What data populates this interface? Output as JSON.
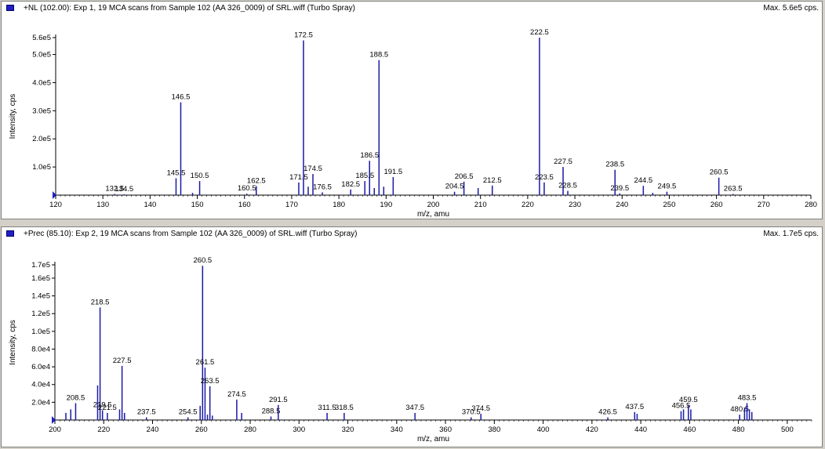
{
  "panels": [
    {
      "title": "+NL (102.00): Exp 1, 19 MCA scans from Sample 102 (AA 326_0009) of SRL.wiff (Turbo Spray)",
      "max_label": "Max. 5.6e5 cps."
    },
    {
      "title": "+Prec (85.10): Exp 2, 19 MCA scans from Sample 102 (AA 326_0009) of SRL.wiff (Turbo Spray)",
      "max_label": "Max. 1.7e5 cps."
    }
  ],
  "colors": {
    "peak": "#1a1aa8",
    "accent": "#2020c8",
    "background": "#ffffff",
    "frame": "#d4d0c8"
  },
  "chart_data": [
    {
      "type": "bar",
      "xlabel": "m/z, amu",
      "ylabel": "Intensity, cps",
      "xlim": [
        120,
        280
      ],
      "ylim": [
        0,
        560000
      ],
      "x_ticks": [
        120,
        130,
        140,
        150,
        160,
        170,
        180,
        190,
        200,
        210,
        220,
        230,
        240,
        250,
        260,
        270,
        280
      ],
      "y_ticks": [
        {
          "v": 100000,
          "l": "1.0e5"
        },
        {
          "v": 200000,
          "l": "2.0e5"
        },
        {
          "v": 300000,
          "l": "3.0e5"
        },
        {
          "v": 400000,
          "l": "4.0e5"
        },
        {
          "v": 500000,
          "l": "5.0e5"
        },
        {
          "v": 560000,
          "l": "5.6e5"
        }
      ],
      "peaks": [
        {
          "x": 132.5,
          "y": 4000,
          "label": "132.5"
        },
        {
          "x": 134.5,
          "y": 3000,
          "label": "134.5"
        },
        {
          "x": 145.5,
          "y": 60000,
          "label": "145.5"
        },
        {
          "x": 146.5,
          "y": 330000,
          "label": "146.5"
        },
        {
          "x": 149.0,
          "y": 8000
        },
        {
          "x": 150.5,
          "y": 50000,
          "label": "150.5"
        },
        {
          "x": 160.5,
          "y": 5000,
          "label": "160.5"
        },
        {
          "x": 162.5,
          "y": 32000,
          "label": "162.5"
        },
        {
          "x": 171.5,
          "y": 45000,
          "label": "171.5"
        },
        {
          "x": 172.5,
          "y": 550000,
          "label": "172.5"
        },
        {
          "x": 173.5,
          "y": 30000
        },
        {
          "x": 174.5,
          "y": 75000,
          "label": "174.5"
        },
        {
          "x": 176.5,
          "y": 10000,
          "label": "176.5"
        },
        {
          "x": 182.5,
          "y": 20000,
          "label": "182.5"
        },
        {
          "x": 185.5,
          "y": 50000,
          "label": "185.5"
        },
        {
          "x": 186.5,
          "y": 122000,
          "label": "186.5"
        },
        {
          "x": 187.5,
          "y": 25000
        },
        {
          "x": 188.5,
          "y": 480000,
          "label": "188.5"
        },
        {
          "x": 189.5,
          "y": 30000
        },
        {
          "x": 191.5,
          "y": 64000,
          "label": "191.5"
        },
        {
          "x": 204.5,
          "y": 12000,
          "label": "204.5"
        },
        {
          "x": 206.5,
          "y": 48000,
          "label": "206.5"
        },
        {
          "x": 209.5,
          "y": 25000
        },
        {
          "x": 212.5,
          "y": 34000,
          "label": "212.5"
        },
        {
          "x": 222.5,
          "y": 560000,
          "label": "222.5"
        },
        {
          "x": 223.5,
          "y": 45000,
          "label": "223.5"
        },
        {
          "x": 227.5,
          "y": 100000,
          "label": "227.5"
        },
        {
          "x": 228.5,
          "y": 15000,
          "label": "228.5"
        },
        {
          "x": 238.5,
          "y": 90000,
          "label": "238.5"
        },
        {
          "x": 239.5,
          "y": 6000,
          "label": "239.5"
        },
        {
          "x": 244.5,
          "y": 33000,
          "label": "244.5"
        },
        {
          "x": 246.5,
          "y": 8000
        },
        {
          "x": 249.5,
          "y": 12000,
          "label": "249.5"
        },
        {
          "x": 260.5,
          "y": 62000,
          "label": "260.5"
        },
        {
          "x": 263.5,
          "y": 4000,
          "label": "263.5"
        }
      ]
    },
    {
      "type": "bar",
      "xlabel": "m/z, amu",
      "ylabel": "Intensity, cps",
      "xlim": [
        200,
        510
      ],
      "ylim": [
        0,
        175000
      ],
      "x_ticks": [
        200,
        220,
        240,
        260,
        280,
        300,
        320,
        340,
        360,
        380,
        400,
        420,
        440,
        460,
        480,
        500
      ],
      "y_ticks": [
        {
          "v": 20000,
          "l": "2.0e4"
        },
        {
          "v": 40000,
          "l": "4.0e4"
        },
        {
          "v": 60000,
          "l": "6.0e4"
        },
        {
          "v": 80000,
          "l": "8.0e4"
        },
        {
          "v": 100000,
          "l": "1.0e5"
        },
        {
          "v": 120000,
          "l": "1.2e5"
        },
        {
          "v": 140000,
          "l": "1.4e5"
        },
        {
          "v": 160000,
          "l": "1.6e5"
        },
        {
          "v": 175000,
          "l": "1.7e5"
        }
      ],
      "peaks": [
        {
          "x": 204.5,
          "y": 8000
        },
        {
          "x": 206.5,
          "y": 12000
        },
        {
          "x": 208.5,
          "y": 19000,
          "label": "208.5"
        },
        {
          "x": 217.5,
          "y": 39000
        },
        {
          "x": 218.5,
          "y": 127000,
          "label": "218.5"
        },
        {
          "x": 219.5,
          "y": 11000,
          "label": "219.5"
        },
        {
          "x": 221.5,
          "y": 8000,
          "label": "221.5"
        },
        {
          "x": 226.5,
          "y": 12000
        },
        {
          "x": 227.5,
          "y": 61000,
          "label": "227.5"
        },
        {
          "x": 228.5,
          "y": 8000
        },
        {
          "x": 237.5,
          "y": 3000,
          "label": "237.5"
        },
        {
          "x": 254.5,
          "y": 3000,
          "label": "254.5"
        },
        {
          "x": 259.5,
          "y": 16000
        },
        {
          "x": 260.5,
          "y": 174000,
          "label": "260.5"
        },
        {
          "x": 261.5,
          "y": 59000,
          "label": "261.5"
        },
        {
          "x": 262.5,
          "y": 6000
        },
        {
          "x": 263.5,
          "y": 38000,
          "label": "263.5"
        },
        {
          "x": 264.5,
          "y": 5000
        },
        {
          "x": 274.5,
          "y": 23000,
          "label": "274.5"
        },
        {
          "x": 276.5,
          "y": 8000
        },
        {
          "x": 288.5,
          "y": 4000,
          "label": "288.5"
        },
        {
          "x": 291.5,
          "y": 17000,
          "label": "291.5"
        },
        {
          "x": 311.5,
          "y": 8000,
          "label": "311.5"
        },
        {
          "x": 318.5,
          "y": 8000,
          "label": "318.5"
        },
        {
          "x": 347.5,
          "y": 8000,
          "label": "347.5"
        },
        {
          "x": 370.5,
          "y": 3000,
          "label": "370.5"
        },
        {
          "x": 374.5,
          "y": 7000,
          "label": "374.5"
        },
        {
          "x": 426.5,
          "y": 3000,
          "label": "426.5"
        },
        {
          "x": 437.5,
          "y": 9000,
          "label": "437.5"
        },
        {
          "x": 438.5,
          "y": 7000
        },
        {
          "x": 456.5,
          "y": 10000,
          "label": "456.5"
        },
        {
          "x": 457.5,
          "y": 12000
        },
        {
          "x": 459.5,
          "y": 17000,
          "label": "459.5"
        },
        {
          "x": 460.5,
          "y": 12000
        },
        {
          "x": 480.5,
          "y": 6000,
          "label": "480.5"
        },
        {
          "x": 482.5,
          "y": 14000
        },
        {
          "x": 483.5,
          "y": 19000,
          "label": "483.5"
        },
        {
          "x": 484.5,
          "y": 12000
        },
        {
          "x": 485.5,
          "y": 9000
        }
      ]
    }
  ]
}
